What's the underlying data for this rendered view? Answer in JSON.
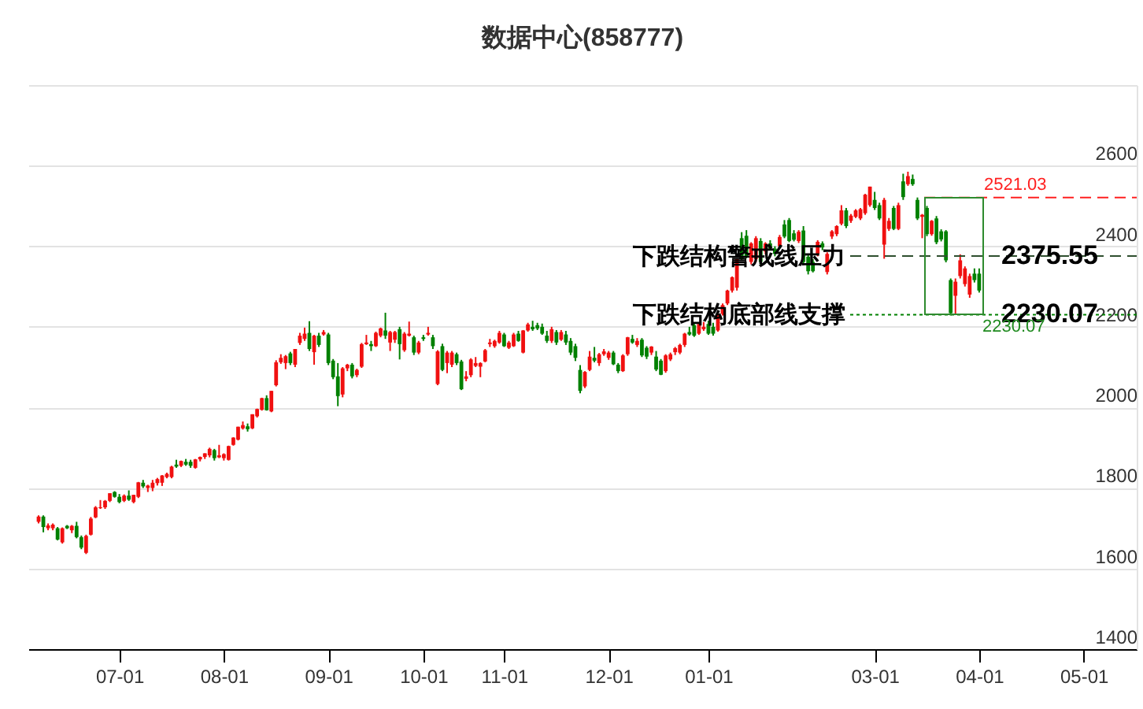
{
  "chart_data": {
    "type": "candlestick",
    "title": "数据中心(858777)",
    "categories": [
      null,
      null,
      null,
      null,
      null,
      null,
      null,
      null,
      null,
      null,
      null,
      null,
      null,
      null,
      null,
      null,
      null,
      "07-01",
      null,
      null,
      null,
      null,
      null,
      null,
      null,
      null,
      null,
      null,
      null,
      null,
      null,
      null,
      null,
      null,
      null,
      null,
      null,
      null,
      null,
      "08-01",
      null,
      null,
      null,
      null,
      null,
      null,
      null,
      null,
      null,
      null,
      null,
      null,
      null,
      null,
      null,
      null,
      null,
      null,
      null,
      null,
      null,
      "09-01",
      null,
      null,
      null,
      null,
      null,
      null,
      null,
      null,
      null,
      null,
      null,
      null,
      null,
      null,
      null,
      null,
      null,
      null,
      null,
      "10-01",
      null,
      null,
      null,
      null,
      null,
      null,
      null,
      null,
      null,
      null,
      null,
      null,
      null,
      null,
      null,
      null,
      "11-01",
      null,
      null,
      null,
      null,
      null,
      null,
      null,
      null,
      null,
      null,
      null,
      null,
      null,
      null,
      null,
      null,
      null,
      null,
      null,
      null,
      null,
      "12-01",
      null,
      null,
      null,
      null,
      null,
      null,
      null,
      null,
      null,
      null,
      null,
      null,
      null,
      null,
      null,
      null,
      null,
      null,
      null,
      null,
      "01-01",
      null,
      null,
      null,
      null,
      null,
      null,
      null,
      null,
      null,
      null,
      null,
      null,
      null,
      null,
      null,
      null,
      null,
      null,
      null,
      null,
      null,
      null,
      null,
      null,
      null,
      null,
      null,
      null,
      null,
      null,
      null,
      null,
      null,
      null,
      "03-01",
      null,
      null,
      null,
      null,
      null,
      null,
      null,
      null,
      null,
      null,
      null,
      null,
      null,
      null,
      null,
      null,
      null,
      null,
      null,
      null,
      null,
      "04-01",
      null,
      null,
      null,
      null,
      null,
      null,
      null,
      null,
      null,
      null,
      null,
      null,
      null,
      null,
      null,
      null,
      null,
      null,
      null,
      null,
      null,
      "05-01",
      null,
      null,
      null,
      null,
      null,
      null,
      null,
      null,
      null
    ],
    "ohlc": [
      [
        1716,
        1732,
        1712,
        1729
      ],
      [
        1729,
        1732,
        1690,
        1703
      ],
      [
        1700,
        1712,
        1695,
        1707
      ],
      [
        1700,
        1712,
        1695,
        1709
      ],
      [
        1700,
        1703,
        1670,
        1672
      ],
      [
        1665,
        1702,
        1662,
        1700
      ],
      [
        1706,
        1708,
        1698,
        1700
      ],
      [
        1695,
        1708,
        1688,
        1706
      ],
      [
        1706,
        1716,
        1675,
        1678
      ],
      [
        1678,
        1682,
        1648,
        1652
      ],
      [
        1639,
        1684,
        1636,
        1681
      ],
      [
        1684,
        1728,
        1682,
        1724
      ],
      [
        1727,
        1755,
        1725,
        1752
      ],
      [
        1750,
        1770,
        1748,
        1752
      ],
      [
        1752,
        1770,
        1748,
        1768
      ],
      [
        1768,
        1787,
        1765,
        1787
      ],
      [
        1790,
        1792,
        1776,
        1778
      ],
      [
        1778,
        1785,
        1762,
        1765
      ],
      [
        1768,
        1784,
        1765,
        1781
      ],
      [
        1781,
        1794,
        1768,
        1771
      ],
      [
        1765,
        1783,
        1762,
        1783
      ],
      [
        1778,
        1815,
        1775,
        1814
      ],
      [
        1813,
        1820,
        1800,
        1804
      ],
      [
        1800,
        1808,
        1790,
        1806
      ],
      [
        1800,
        1820,
        1792,
        1813
      ],
      [
        1812,
        1825,
        1806,
        1822
      ],
      [
        1813,
        1832,
        1805,
        1831
      ],
      [
        1827,
        1838,
        1824,
        1835
      ],
      [
        1827,
        1855,
        1824,
        1853
      ],
      [
        1858,
        1870,
        1850,
        1853
      ],
      [
        1855,
        1868,
        1852,
        1867
      ],
      [
        1865,
        1872,
        1855,
        1858
      ],
      [
        1865,
        1870,
        1850,
        1855
      ],
      [
        1850,
        1872,
        1848,
        1871
      ],
      [
        1871,
        1878,
        1866,
        1877
      ],
      [
        1877,
        1886,
        1872,
        1886
      ],
      [
        1881,
        1900,
        1876,
        1897
      ],
      [
        1894,
        1897,
        1868,
        1874
      ],
      [
        1876,
        1907,
        1874,
        1881
      ],
      [
        1874,
        1886,
        1868,
        1884
      ],
      [
        1870,
        1905,
        1868,
        1904
      ],
      [
        1907,
        1926,
        1905,
        1925
      ],
      [
        1920,
        1952,
        1918,
        1952
      ],
      [
        1948,
        1965,
        1945,
        1956
      ],
      [
        1953,
        1960,
        1940,
        1946
      ],
      [
        1948,
        1983,
        1946,
        1983
      ],
      [
        1978,
        1997,
        1975,
        1996
      ],
      [
        1994,
        2024,
        1992,
        2023
      ],
      [
        2023,
        2030,
        1992,
        1993
      ],
      [
        1990,
        2041,
        1988,
        2041
      ],
      [
        2055,
        2117,
        2052,
        2112
      ],
      [
        2112,
        2132,
        2108,
        2123
      ],
      [
        2110,
        2130,
        2095,
        2127
      ],
      [
        2134,
        2138,
        2105,
        2110
      ],
      [
        2106,
        2145,
        2100,
        2145
      ],
      [
        2160,
        2185,
        2155,
        2178
      ],
      [
        2170,
        2198,
        2165,
        2183
      ],
      [
        2185,
        2214,
        2140,
        2145
      ],
      [
        2137,
        2180,
        2106,
        2178
      ],
      [
        2178,
        2185,
        2150,
        2155
      ],
      [
        2181,
        2192,
        2178,
        2187
      ],
      [
        2181,
        2185,
        2105,
        2110
      ],
      [
        2116,
        2120,
        2070,
        2075
      ],
      [
        2077,
        2110,
        2003,
        2028
      ],
      [
        2032,
        2100,
        2025,
        2097
      ],
      [
        2097,
        2108,
        2090,
        2106
      ],
      [
        2106,
        2110,
        2072,
        2077
      ],
      [
        2080,
        2096,
        2075,
        2093
      ],
      [
        2101,
        2160,
        2098,
        2157
      ],
      [
        2157,
        2180,
        2155,
        2161
      ],
      [
        2157,
        2165,
        2140,
        2152
      ],
      [
        2152,
        2188,
        2150,
        2185
      ],
      [
        2178,
        2198,
        2174,
        2196
      ],
      [
        2191,
        2235,
        2170,
        2178
      ],
      [
        2161,
        2190,
        2140,
        2187
      ],
      [
        2168,
        2190,
        2160,
        2187
      ],
      [
        2194,
        2200,
        2119,
        2157
      ],
      [
        2142,
        2187,
        2138,
        2183
      ],
      [
        2178,
        2213,
        2176,
        2183
      ],
      [
        2174,
        2178,
        2130,
        2136
      ],
      [
        2136,
        2165,
        2132,
        2161
      ],
      [
        2174,
        2180,
        2165,
        2170
      ],
      [
        2181,
        2200,
        2178,
        2185
      ],
      [
        2174,
        2180,
        2145,
        2152
      ],
      [
        2058,
        2142,
        2055,
        2139
      ],
      [
        2152,
        2158,
        2090,
        2093
      ],
      [
        2110,
        2140,
        2085,
        2136
      ],
      [
        2106,
        2140,
        2100,
        2136
      ],
      [
        2132,
        2136,
        2105,
        2110
      ],
      [
        2114,
        2118,
        2043,
        2045
      ],
      [
        2071,
        2090,
        2065,
        2077
      ],
      [
        2080,
        2122,
        2075,
        2119
      ],
      [
        2103,
        2125,
        2100,
        2110
      ],
      [
        2101,
        2112,
        2075,
        2110
      ],
      [
        2114,
        2145,
        2112,
        2142
      ],
      [
        2157,
        2170,
        2150,
        2161
      ],
      [
        2152,
        2168,
        2148,
        2165
      ],
      [
        2161,
        2190,
        2158,
        2185
      ],
      [
        2181,
        2185,
        2150,
        2152
      ],
      [
        2148,
        2165,
        2145,
        2161
      ],
      [
        2152,
        2185,
        2150,
        2181
      ],
      [
        2183,
        2190,
        2163,
        2165
      ],
      [
        2136,
        2192,
        2134,
        2191
      ],
      [
        2191,
        2210,
        2188,
        2206
      ],
      [
        2200,
        2215,
        2190,
        2194
      ],
      [
        2204,
        2210,
        2192,
        2196
      ],
      [
        2200,
        2208,
        2180,
        2183
      ],
      [
        2178,
        2190,
        2160,
        2165
      ],
      [
        2165,
        2200,
        2160,
        2194
      ],
      [
        2187,
        2192,
        2155,
        2161
      ],
      [
        2168,
        2192,
        2165,
        2187
      ],
      [
        2181,
        2190,
        2155,
        2161
      ],
      [
        2165,
        2172,
        2130,
        2136
      ],
      [
        2152,
        2158,
        2115,
        2123
      ],
      [
        2093,
        2105,
        2035,
        2041
      ],
      [
        2052,
        2090,
        2048,
        2088
      ],
      [
        2093,
        2140,
        2090,
        2126
      ],
      [
        2123,
        2150,
        2112,
        2116
      ],
      [
        2110,
        2135,
        2103,
        2132
      ],
      [
        2132,
        2145,
        2128,
        2139
      ],
      [
        2123,
        2140,
        2118,
        2136
      ],
      [
        2136,
        2140,
        2105,
        2107
      ],
      [
        2106,
        2110,
        2085,
        2090
      ],
      [
        2090,
        2132,
        2088,
        2129
      ],
      [
        2132,
        2175,
        2128,
        2174
      ],
      [
        2170,
        2180,
        2158,
        2161
      ],
      [
        2155,
        2172,
        2150,
        2165
      ],
      [
        2168,
        2172,
        2125,
        2129
      ],
      [
        2148,
        2152,
        2120,
        2126
      ],
      [
        2136,
        2152,
        2130,
        2151
      ],
      [
        2126,
        2140,
        2090,
        2094
      ],
      [
        2116,
        2120,
        2080,
        2081
      ],
      [
        2090,
        2132,
        2086,
        2129
      ],
      [
        2119,
        2136,
        2115,
        2132
      ],
      [
        2137,
        2150,
        2130,
        2147
      ],
      [
        2136,
        2158,
        2132,
        2155
      ],
      [
        2155,
        2185,
        2150,
        2183
      ],
      [
        2187,
        2200,
        2178,
        2181
      ],
      [
        2204,
        2210,
        2175,
        2178
      ],
      [
        2183,
        2210,
        2180,
        2207
      ],
      [
        2194,
        2212,
        2190,
        2200
      ],
      [
        2207,
        2215,
        2180,
        2183
      ],
      [
        2200,
        2210,
        2178,
        2183
      ],
      [
        2191,
        2235,
        2188,
        2232
      ],
      [
        2232,
        2258,
        2228,
        2254
      ],
      [
        2258,
        2292,
        2254,
        2290
      ],
      [
        2290,
        2325,
        2285,
        2323
      ],
      [
        2297,
        2370,
        2290,
        2368
      ],
      [
        2420,
        2435,
        2365,
        2368
      ],
      [
        2426,
        2440,
        2370,
        2374
      ],
      [
        2361,
        2410,
        2355,
        2407
      ],
      [
        2368,
        2425,
        2360,
        2420
      ],
      [
        2413,
        2420,
        2355,
        2361
      ],
      [
        2387,
        2410,
        2380,
        2407
      ],
      [
        2407,
        2415,
        2390,
        2394
      ],
      [
        2394,
        2400,
        2375,
        2381
      ],
      [
        2400,
        2428,
        2395,
        2423
      ],
      [
        2454,
        2465,
        2420,
        2424
      ],
      [
        2465,
        2470,
        2410,
        2413
      ],
      [
        2432,
        2440,
        2412,
        2416
      ],
      [
        2413,
        2440,
        2408,
        2436
      ],
      [
        2439,
        2450,
        2355,
        2361
      ],
      [
        2374,
        2380,
        2330,
        2338
      ],
      [
        2361,
        2368,
        2335,
        2338
      ],
      [
        2381,
        2415,
        2375,
        2411
      ],
      [
        2407,
        2412,
        2390,
        2397
      ],
      [
        2336,
        2385,
        2330,
        2381
      ],
      [
        2424,
        2440,
        2418,
        2437
      ],
      [
        2430,
        2452,
        2425,
        2450
      ],
      [
        2456,
        2502,
        2452,
        2489
      ],
      [
        2489,
        2495,
        2445,
        2450
      ],
      [
        2463,
        2480,
        2458,
        2476
      ],
      [
        2473,
        2492,
        2470,
        2489
      ],
      [
        2469,
        2495,
        2465,
        2492
      ],
      [
        2482,
        2530,
        2478,
        2528
      ],
      [
        2502,
        2548,
        2498,
        2548
      ],
      [
        2515,
        2535,
        2490,
        2495
      ],
      [
        2502,
        2508,
        2465,
        2469
      ],
      [
        2404,
        2520,
        2369,
        2515
      ],
      [
        2443,
        2470,
        2438,
        2463
      ],
      [
        2495,
        2500,
        2440,
        2443
      ],
      [
        2443,
        2508,
        2440,
        2502
      ],
      [
        2561,
        2580,
        2515,
        2522
      ],
      [
        2554,
        2585,
        2550,
        2574
      ],
      [
        2567,
        2578,
        2550,
        2554
      ],
      [
        2515,
        2521,
        2465,
        2469
      ],
      [
        2473,
        2480,
        2420,
        2478
      ],
      [
        2495,
        2500,
        2425,
        2430
      ],
      [
        2430,
        2465,
        2426,
        2463
      ],
      [
        2469,
        2475,
        2405,
        2410
      ],
      [
        2437,
        2442,
        2412,
        2417
      ],
      [
        2437,
        2440,
        2360,
        2365
      ],
      [
        2316,
        2320,
        2228,
        2234
      ],
      [
        2277,
        2320,
        2230,
        2312
      ],
      [
        2326,
        2380,
        2320,
        2365
      ],
      [
        2306,
        2350,
        2300,
        2345
      ],
      [
        2280,
        2332,
        2272,
        2326
      ],
      [
        2332,
        2345,
        2310,
        2316
      ],
      [
        2332,
        2345,
        2285,
        2290
      ],
      null,
      null,
      null,
      null,
      null,
      null,
      null,
      null,
      null,
      null,
      null,
      null,
      null,
      null,
      null,
      null,
      null,
      null,
      null,
      null,
      null,
      null,
      null,
      null,
      null,
      null,
      null,
      null,
      null,
      null,
      null
    ],
    "colors": [
      "#f01010",
      "#008000",
      "#f01010",
      "#f01010",
      "#008000",
      "#f01010",
      "#008000",
      "#f01010",
      "#008000",
      "#008000",
      "#f01010",
      "#f01010",
      "#f01010",
      "#f01010",
      "#f01010",
      "#f01010",
      "#008000",
      "#008000",
      "#f01010",
      "#008000",
      "#f01010",
      "#f01010",
      "#008000",
      "#f01010",
      "#f01010",
      "#f01010",
      "#f01010",
      "#f01010",
      "#f01010",
      "#008000",
      "#f01010",
      "#008000",
      "#008000",
      "#f01010",
      "#f01010",
      "#f01010",
      "#f01010",
      "#008000",
      "#f01010",
      "#f01010",
      "#f01010",
      "#f01010",
      "#f01010",
      "#f01010",
      "#008000",
      "#f01010",
      "#f01010",
      "#f01010",
      "#008000",
      "#f01010",
      "#f01010",
      "#f01010",
      "#f01010",
      "#008000",
      "#f01010",
      "#f01010",
      "#f01010",
      "#008000",
      "#f01010",
      "#008000",
      "#f01010",
      "#008000",
      "#008000",
      "#008000",
      "#f01010",
      "#f01010",
      "#008000",
      "#f01010",
      "#f01010",
      "#f01010",
      "#008000",
      "#f01010",
      "#f01010",
      "#008000",
      "#f01010",
      "#f01010",
      "#008000",
      "#f01010",
      "#f01010",
      "#008000",
      "#f01010",
      "#008000",
      "#f01010",
      "#008000",
      "#f01010",
      "#008000",
      "#f01010",
      "#f01010",
      "#008000",
      "#008000",
      "#f01010",
      "#f01010",
      "#f01010",
      "#f01010",
      "#f01010",
      "#f01010",
      "#f01010",
      "#f01010",
      "#008000",
      "#f01010",
      "#f01010",
      "#008000",
      "#f01010",
      "#f01010",
      "#008000",
      "#008000",
      "#008000",
      "#008000",
      "#f01010",
      "#008000",
      "#f01010",
      "#008000",
      "#008000",
      "#008000",
      "#008000",
      "#f01010",
      "#f01010",
      "#008000",
      "#f01010",
      "#f01010",
      "#f01010",
      "#008000",
      "#008000",
      "#f01010",
      "#f01010",
      "#008000",
      "#f01010",
      "#008000",
      "#008000",
      "#f01010",
      "#008000",
      "#008000",
      "#f01010",
      "#f01010",
      "#f01010",
      "#f01010",
      "#f01010",
      "#008000",
      "#008000",
      "#f01010",
      "#f01010",
      "#008000",
      "#008000",
      "#f01010",
      "#f01010",
      "#f01010",
      "#f01010",
      "#f01010",
      "#008000",
      "#008000",
      "#f01010",
      "#f01010",
      "#008000",
      "#f01010",
      "#008000",
      "#008000",
      "#f01010",
      "#008000",
      "#008000",
      "#008000",
      "#f01010",
      "#008000",
      "#008000",
      "#008000",
      "#f01010",
      "#008000",
      "#f01010",
      "#f01010",
      "#f01010",
      "#f01010",
      "#008000",
      "#f01010",
      "#f01010",
      "#f01010",
      "#f01010",
      "#f01010",
      "#008000",
      "#008000",
      "#f01010",
      "#f01010",
      "#008000",
      "#f01010",
      "#008000",
      "#f01010",
      "#008000",
      "#008000",
      "#f01010",
      "#008000",
      "#f01010",
      "#008000",
      "#008000",
      "#008000",
      "#008000",
      "#f01010",
      "#f01010",
      "#f01010",
      "#f01010",
      "#008000",
      "#008000",
      null,
      null,
      null,
      null,
      null,
      null,
      null,
      null,
      null,
      null,
      null,
      null,
      null,
      null,
      null,
      null,
      null,
      null,
      null,
      null,
      null,
      null,
      null,
      null,
      null,
      null,
      null,
      null,
      null,
      null,
      null
    ],
    "ylim": [
      1400,
      2800
    ],
    "yticks": [
      1400,
      1600,
      1800,
      2000,
      2200,
      2400,
      2600,
      {
        "value": 2800,
        "label": null
      }
    ],
    "grid": "y",
    "ref_lines": [
      {
        "axis": "y",
        "value": 2521.03,
        "label": "2521.03",
        "color": "#ff2020",
        "line_style": "dashed"
      },
      {
        "axis": "y",
        "value": 2375.55,
        "label": "2375.55",
        "color": "#2f4f2f",
        "line_style": "dashed"
      },
      {
        "axis": "y",
        "value": 2230.07,
        "label": "2230.07",
        "color": "#008000",
        "line_style": "dotted"
      }
    ],
    "annotations": [
      {
        "text": "下跌结构警戒线压力",
        "y": 2375.55
      },
      "下跌结构底部线支撑",
      {
        "text": "2230.07",
        "y": 2230.07
      }
    ]
  }
}
